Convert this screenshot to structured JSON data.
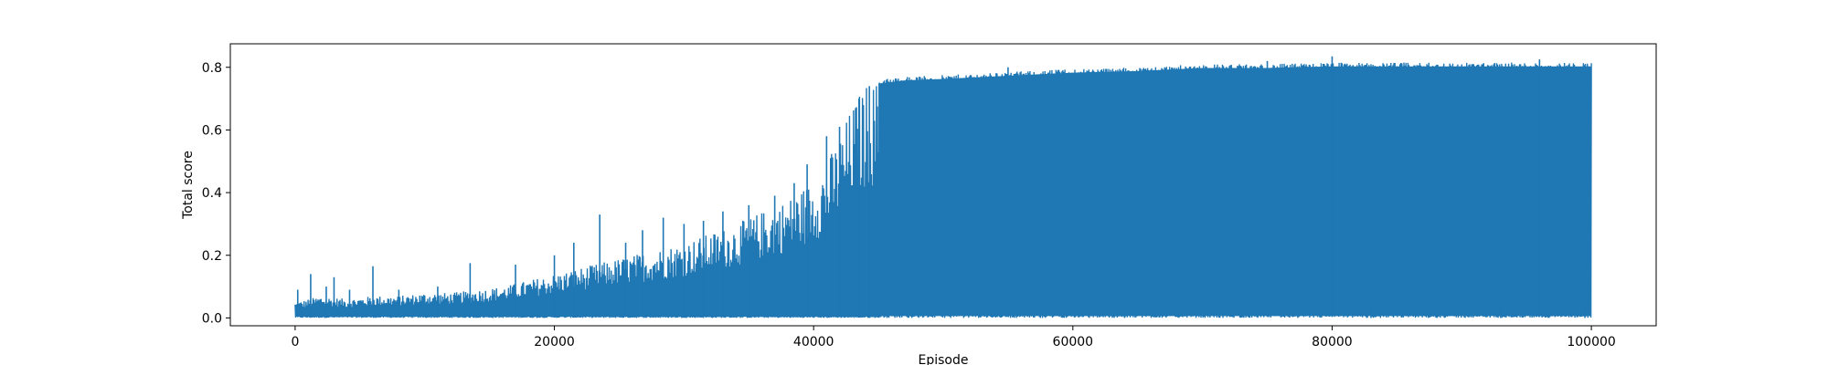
{
  "chart_data": {
    "type": "line",
    "title": "",
    "xlabel": "Episode",
    "ylabel": "Total score",
    "xlim": [
      -5000,
      105000
    ],
    "ylim": [
      -0.025,
      0.875
    ],
    "x_ticks": [
      0,
      20000,
      40000,
      60000,
      80000,
      100000
    ],
    "x_tick_labels": [
      "0",
      "20000",
      "40000",
      "60000",
      "80000",
      "100000"
    ],
    "y_ticks": [
      0.0,
      0.2,
      0.4,
      0.6,
      0.8
    ],
    "y_tick_labels": [
      "0.0",
      "0.2",
      "0.4",
      "0.6",
      "0.8"
    ],
    "grid": false,
    "legend": "none",
    "series": [
      {
        "color": "#1f77b4",
        "envelope": {
          "x": [
            0,
            2000,
            4000,
            6000,
            8000,
            10000,
            12000,
            14000,
            16000,
            18000,
            20000,
            22000,
            24000,
            26000,
            28000,
            30000,
            32000,
            34000,
            36000,
            38000,
            40000,
            41000,
            42000,
            43000,
            44000,
            45000,
            47000,
            50000,
            55000,
            60000,
            65000,
            70000,
            75000,
            80000,
            85000,
            90000,
            95000,
            100000
          ],
          "upper": [
            0.05,
            0.07,
            0.06,
            0.07,
            0.07,
            0.08,
            0.08,
            0.09,
            0.1,
            0.12,
            0.14,
            0.16,
            0.18,
            0.2,
            0.22,
            0.24,
            0.27,
            0.3,
            0.34,
            0.38,
            0.44,
            0.5,
            0.58,
            0.68,
            0.75,
            0.76,
            0.77,
            0.775,
            0.785,
            0.795,
            0.8,
            0.81,
            0.81,
            0.815,
            0.815,
            0.815,
            0.815,
            0.815
          ],
          "lower": [
            0.0,
            0.0,
            0.0,
            0.0,
            0.0,
            0.0,
            0.0,
            0.0,
            0.0,
            0.0,
            0.0,
            0.0,
            0.0,
            0.0,
            0.0,
            0.0,
            0.0,
            0.0,
            0.0,
            0.0,
            0.0,
            0.0,
            0.0,
            0.0,
            0.0,
            0.0,
            0.0,
            0.0,
            0.0,
            0.0,
            0.0,
            0.0,
            0.0,
            0.0,
            0.0,
            0.0,
            0.0,
            0.0
          ]
        },
        "spikes": [
          {
            "x": 200,
            "y": 0.09
          },
          {
            "x": 1200,
            "y": 0.14
          },
          {
            "x": 2400,
            "y": 0.1
          },
          {
            "x": 3000,
            "y": 0.13
          },
          {
            "x": 4200,
            "y": 0.09
          },
          {
            "x": 6000,
            "y": 0.165
          },
          {
            "x": 8000,
            "y": 0.09
          },
          {
            "x": 11000,
            "y": 0.1
          },
          {
            "x": 13500,
            "y": 0.175
          },
          {
            "x": 17000,
            "y": 0.17
          },
          {
            "x": 20000,
            "y": 0.2
          },
          {
            "x": 21500,
            "y": 0.24
          },
          {
            "x": 23500,
            "y": 0.33
          },
          {
            "x": 25500,
            "y": 0.24
          },
          {
            "x": 26800,
            "y": 0.28
          },
          {
            "x": 28400,
            "y": 0.32
          },
          {
            "x": 30000,
            "y": 0.3
          },
          {
            "x": 31500,
            "y": 0.31
          },
          {
            "x": 33000,
            "y": 0.34
          },
          {
            "x": 35000,
            "y": 0.36
          },
          {
            "x": 37000,
            "y": 0.39
          },
          {
            "x": 38500,
            "y": 0.43
          },
          {
            "x": 39500,
            "y": 0.49
          },
          {
            "x": 41000,
            "y": 0.58
          },
          {
            "x": 42000,
            "y": 0.61
          },
          {
            "x": 43500,
            "y": 0.7
          },
          {
            "x": 44300,
            "y": 0.74
          },
          {
            "x": 55000,
            "y": 0.8
          },
          {
            "x": 75000,
            "y": 0.82
          },
          {
            "x": 80000,
            "y": 0.835
          },
          {
            "x": 96000,
            "y": 0.825
          }
        ],
        "dips": [
          {
            "x": 64000,
            "y": 0.03
          },
          {
            "x": 83000,
            "y": 0.035
          },
          {
            "x": 93000,
            "y": 0.04
          },
          {
            "x": 99500,
            "y": 0.045
          }
        ]
      }
    ]
  }
}
